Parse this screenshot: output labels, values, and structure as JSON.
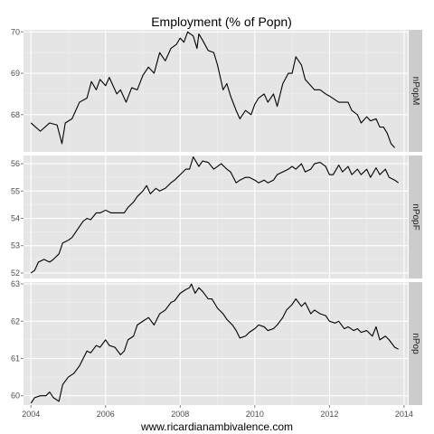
{
  "chart_data": {
    "type": "line",
    "title": "Employment (% of Popn)",
    "xlabel": "www.ricardianambivalence.com",
    "xlim": [
      2003.8,
      2014.1
    ],
    "xticks": [
      2004,
      2006,
      2008,
      2010,
      2012,
      2014
    ],
    "xtick_labels": [
      "2004",
      "2006",
      "2008",
      "2010",
      "2012",
      "2014"
    ],
    "facet_layout": "vertical, strip labels on right",
    "grid": true,
    "panels": [
      {
        "name": "nPopM",
        "ylim": [
          67.1,
          70.05
        ],
        "yticks": [
          68,
          69,
          70
        ],
        "ytick_labels": [
          "68",
          "69",
          "70"
        ],
        "points": [
          [
            2004.0,
            67.8
          ],
          [
            2004.25,
            67.6
          ],
          [
            2004.5,
            67.8
          ],
          [
            2004.7,
            67.75
          ],
          [
            2004.83,
            67.3
          ],
          [
            2004.92,
            67.8
          ],
          [
            2005.1,
            67.9
          ],
          [
            2005.3,
            68.3
          ],
          [
            2005.5,
            68.4
          ],
          [
            2005.62,
            68.8
          ],
          [
            2005.75,
            68.6
          ],
          [
            2005.85,
            68.85
          ],
          [
            2006.0,
            68.7
          ],
          [
            2006.1,
            68.9
          ],
          [
            2006.3,
            68.5
          ],
          [
            2006.4,
            68.6
          ],
          [
            2006.55,
            68.3
          ],
          [
            2006.7,
            68.65
          ],
          [
            2006.85,
            68.6
          ],
          [
            2007.0,
            68.95
          ],
          [
            2007.15,
            69.15
          ],
          [
            2007.3,
            69.0
          ],
          [
            2007.45,
            69.5
          ],
          [
            2007.6,
            69.3
          ],
          [
            2007.75,
            69.6
          ],
          [
            2007.9,
            69.7
          ],
          [
            2008.0,
            69.85
          ],
          [
            2008.1,
            69.75
          ],
          [
            2008.2,
            70.0
          ],
          [
            2008.35,
            69.9
          ],
          [
            2008.45,
            69.6
          ],
          [
            2008.5,
            69.95
          ],
          [
            2008.6,
            69.8
          ],
          [
            2008.75,
            69.55
          ],
          [
            2008.9,
            69.5
          ],
          [
            2009.0,
            69.2
          ],
          [
            2009.15,
            68.6
          ],
          [
            2009.25,
            68.75
          ],
          [
            2009.35,
            68.45
          ],
          [
            2009.5,
            68.1
          ],
          [
            2009.6,
            67.9
          ],
          [
            2009.75,
            68.1
          ],
          [
            2009.9,
            68.0
          ],
          [
            2010.0,
            68.25
          ],
          [
            2010.1,
            68.4
          ],
          [
            2010.25,
            68.5
          ],
          [
            2010.35,
            68.3
          ],
          [
            2010.5,
            68.5
          ],
          [
            2010.6,
            68.2
          ],
          [
            2010.75,
            68.75
          ],
          [
            2010.9,
            69.0
          ],
          [
            2011.0,
            69.0
          ],
          [
            2011.1,
            69.4
          ],
          [
            2011.25,
            69.2
          ],
          [
            2011.35,
            68.85
          ],
          [
            2011.5,
            68.7
          ],
          [
            2011.6,
            68.6
          ],
          [
            2011.75,
            68.6
          ],
          [
            2011.9,
            68.5
          ],
          [
            2012.0,
            68.45
          ],
          [
            2012.25,
            68.3
          ],
          [
            2012.5,
            68.3
          ],
          [
            2012.6,
            68.1
          ],
          [
            2012.75,
            68.0
          ],
          [
            2012.85,
            67.8
          ],
          [
            2013.0,
            67.95
          ],
          [
            2013.1,
            67.85
          ],
          [
            2013.25,
            67.9
          ],
          [
            2013.35,
            67.7
          ],
          [
            2013.45,
            67.7
          ],
          [
            2013.55,
            67.55
          ],
          [
            2013.65,
            67.3
          ],
          [
            2013.75,
            67.2
          ]
        ]
      },
      {
        "name": "nPopF",
        "ylim": [
          51.8,
          56.3
        ],
        "yticks": [
          52,
          53,
          54,
          55,
          56
        ],
        "ytick_labels": [
          "52",
          "53",
          "54",
          "55",
          "56"
        ],
        "points": [
          [
            2004.0,
            52.0
          ],
          [
            2004.1,
            52.1
          ],
          [
            2004.2,
            52.4
          ],
          [
            2004.35,
            52.5
          ],
          [
            2004.5,
            52.4
          ],
          [
            2004.6,
            52.5
          ],
          [
            2004.75,
            52.7
          ],
          [
            2004.85,
            53.1
          ],
          [
            2005.0,
            53.2
          ],
          [
            2005.1,
            53.3
          ],
          [
            2005.25,
            53.6
          ],
          [
            2005.4,
            53.9
          ],
          [
            2005.5,
            54.0
          ],
          [
            2005.6,
            53.95
          ],
          [
            2005.75,
            54.2
          ],
          [
            2005.85,
            54.2
          ],
          [
            2006.0,
            54.3
          ],
          [
            2006.15,
            54.2
          ],
          [
            2006.25,
            54.2
          ],
          [
            2006.4,
            54.2
          ],
          [
            2006.5,
            54.2
          ],
          [
            2006.6,
            54.4
          ],
          [
            2006.75,
            54.6
          ],
          [
            2006.85,
            54.8
          ],
          [
            2007.0,
            55.0
          ],
          [
            2007.1,
            55.2
          ],
          [
            2007.2,
            54.9
          ],
          [
            2007.35,
            55.1
          ],
          [
            2007.45,
            55.0
          ],
          [
            2007.6,
            55.1
          ],
          [
            2007.75,
            55.3
          ],
          [
            2007.85,
            55.4
          ],
          [
            2008.0,
            55.6
          ],
          [
            2008.15,
            55.8
          ],
          [
            2008.25,
            55.8
          ],
          [
            2008.35,
            56.25
          ],
          [
            2008.5,
            55.9
          ],
          [
            2008.6,
            56.1
          ],
          [
            2008.75,
            56.05
          ],
          [
            2008.9,
            55.8
          ],
          [
            2009.0,
            55.9
          ],
          [
            2009.1,
            56.0
          ],
          [
            2009.25,
            55.8
          ],
          [
            2009.35,
            55.7
          ],
          [
            2009.5,
            55.3
          ],
          [
            2009.6,
            55.4
          ],
          [
            2009.75,
            55.5
          ],
          [
            2009.85,
            55.5
          ],
          [
            2010.0,
            55.4
          ],
          [
            2010.1,
            55.3
          ],
          [
            2010.25,
            55.4
          ],
          [
            2010.35,
            55.3
          ],
          [
            2010.5,
            55.4
          ],
          [
            2010.6,
            55.6
          ],
          [
            2010.75,
            55.7
          ],
          [
            2010.9,
            55.8
          ],
          [
            2011.0,
            55.9
          ],
          [
            2011.1,
            55.8
          ],
          [
            2011.25,
            56.0
          ],
          [
            2011.35,
            55.7
          ],
          [
            2011.5,
            55.8
          ],
          [
            2011.6,
            56.0
          ],
          [
            2011.75,
            56.05
          ],
          [
            2011.9,
            55.9
          ],
          [
            2012.0,
            55.6
          ],
          [
            2012.1,
            55.6
          ],
          [
            2012.25,
            55.95
          ],
          [
            2012.35,
            55.7
          ],
          [
            2012.5,
            55.9
          ],
          [
            2012.6,
            55.6
          ],
          [
            2012.75,
            55.8
          ],
          [
            2012.85,
            55.6
          ],
          [
            2013.0,
            55.8
          ],
          [
            2013.1,
            55.5
          ],
          [
            2013.25,
            55.85
          ],
          [
            2013.35,
            55.6
          ],
          [
            2013.5,
            55.8
          ],
          [
            2013.6,
            55.5
          ],
          [
            2013.75,
            55.4
          ],
          [
            2013.85,
            55.3
          ]
        ]
      },
      {
        "name": "nPop",
        "ylim": [
          59.75,
          63.05
        ],
        "yticks": [
          60,
          61,
          62,
          63
        ],
        "ytick_labels": [
          "60",
          "61",
          "62",
          "63"
        ],
        "points": [
          [
            2004.0,
            59.8
          ],
          [
            2004.1,
            59.95
          ],
          [
            2004.25,
            60.0
          ],
          [
            2004.4,
            60.0
          ],
          [
            2004.5,
            60.1
          ],
          [
            2004.6,
            59.95
          ],
          [
            2004.75,
            59.85
          ],
          [
            2004.85,
            60.3
          ],
          [
            2005.0,
            60.5
          ],
          [
            2005.15,
            60.6
          ],
          [
            2005.3,
            60.8
          ],
          [
            2005.5,
            61.2
          ],
          [
            2005.6,
            61.15
          ],
          [
            2005.75,
            61.35
          ],
          [
            2005.85,
            61.3
          ],
          [
            2006.0,
            61.5
          ],
          [
            2006.1,
            61.35
          ],
          [
            2006.25,
            61.3
          ],
          [
            2006.4,
            61.1
          ],
          [
            2006.5,
            61.2
          ],
          [
            2006.6,
            61.5
          ],
          [
            2006.75,
            61.6
          ],
          [
            2006.85,
            61.9
          ],
          [
            2007.0,
            62.0
          ],
          [
            2007.15,
            62.1
          ],
          [
            2007.3,
            61.9
          ],
          [
            2007.45,
            62.2
          ],
          [
            2007.6,
            62.3
          ],
          [
            2007.75,
            62.5
          ],
          [
            2007.85,
            62.55
          ],
          [
            2008.0,
            62.75
          ],
          [
            2008.15,
            62.85
          ],
          [
            2008.25,
            62.9
          ],
          [
            2008.3,
            63.0
          ],
          [
            2008.4,
            62.75
          ],
          [
            2008.5,
            62.9
          ],
          [
            2008.6,
            62.8
          ],
          [
            2008.75,
            62.6
          ],
          [
            2008.85,
            62.6
          ],
          [
            2009.0,
            62.35
          ],
          [
            2009.15,
            62.2
          ],
          [
            2009.25,
            62.05
          ],
          [
            2009.4,
            61.9
          ],
          [
            2009.5,
            61.75
          ],
          [
            2009.6,
            61.55
          ],
          [
            2009.75,
            61.6
          ],
          [
            2009.85,
            61.7
          ],
          [
            2010.0,
            61.8
          ],
          [
            2010.1,
            61.9
          ],
          [
            2010.25,
            61.85
          ],
          [
            2010.35,
            61.75
          ],
          [
            2010.5,
            61.8
          ],
          [
            2010.6,
            61.9
          ],
          [
            2010.75,
            62.1
          ],
          [
            2010.85,
            62.3
          ],
          [
            2011.0,
            62.45
          ],
          [
            2011.1,
            62.6
          ],
          [
            2011.25,
            62.4
          ],
          [
            2011.35,
            62.5
          ],
          [
            2011.5,
            62.2
          ],
          [
            2011.6,
            62.3
          ],
          [
            2011.75,
            62.2
          ],
          [
            2011.9,
            62.15
          ],
          [
            2012.0,
            62.0
          ],
          [
            2012.15,
            61.95
          ],
          [
            2012.25,
            62.0
          ],
          [
            2012.4,
            61.8
          ],
          [
            2012.5,
            61.85
          ],
          [
            2012.65,
            61.75
          ],
          [
            2012.75,
            61.8
          ],
          [
            2012.85,
            61.7
          ],
          [
            2013.0,
            61.75
          ],
          [
            2013.15,
            61.6
          ],
          [
            2013.25,
            61.85
          ],
          [
            2013.35,
            61.5
          ],
          [
            2013.5,
            61.6
          ],
          [
            2013.6,
            61.5
          ],
          [
            2013.75,
            61.3
          ],
          [
            2013.85,
            61.25
          ]
        ]
      }
    ]
  }
}
